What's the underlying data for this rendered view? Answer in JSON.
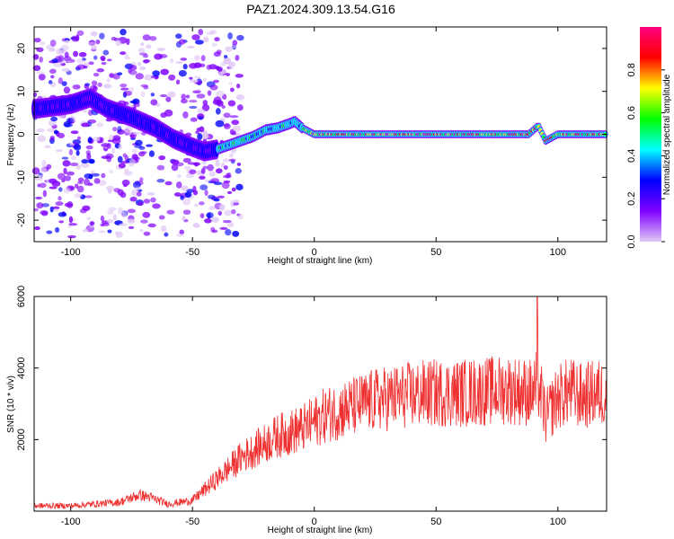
{
  "figure": {
    "title": "PAZ1.2024.309.13.54.G16"
  },
  "chart_data": [
    {
      "type": "heatmap",
      "xlabel": "Height of straight line (km)",
      "ylabel": "Frequency (Hz)",
      "xlim": [
        -115,
        120
      ],
      "ylim": [
        -25,
        25
      ],
      "xticks": [
        -100,
        -50,
        0,
        50,
        100
      ],
      "yticks": [
        -20,
        -10,
        0,
        10,
        20
      ],
      "colorbar": {
        "label": "Normalized spectral amplitude",
        "range": [
          0,
          1
        ],
        "ticks": [
          0.0,
          0.2,
          0.4,
          0.6,
          0.8
        ],
        "colors": [
          "#e0c8f5",
          "#8000ff",
          "#0000ff",
          "#00ffff",
          "#00ff00",
          "#ffff00",
          "#ff0000",
          "#ff0080"
        ]
      },
      "ridge": {
        "height_km": [
          -113,
          -100,
          -92,
          -85,
          -75,
          -65,
          -58,
          -50,
          -45,
          -40,
          -35,
          -30,
          -25,
          -20,
          -15,
          -10,
          -8,
          -5,
          0,
          10,
          20,
          30,
          40,
          50,
          60,
          70,
          80,
          88,
          92,
          95,
          100,
          110,
          120
        ],
        "frequency_hz": [
          6,
          7,
          8.5,
          6,
          4,
          1.5,
          -1,
          -3,
          -4,
          -3.5,
          -2.5,
          -1.5,
          -0.5,
          1,
          1.5,
          2.5,
          3,
          1.5,
          0,
          0,
          0,
          0,
          0,
          0,
          0,
          0,
          0,
          0,
          2,
          -1.5,
          0,
          0,
          0
        ]
      }
    },
    {
      "type": "line",
      "xlabel": "Height of straight line (km)",
      "ylabel": "SNR (10 * v/v)",
      "xlim": [
        -115,
        120
      ],
      "ylim": [
        0,
        6000
      ],
      "xticks": [
        -100,
        -50,
        0,
        50,
        100
      ],
      "yticks": [
        2000,
        4000,
        6000
      ],
      "color": "#ee3030",
      "series": [
        {
          "x": [
            -115,
            -100,
            -90,
            -80,
            -72,
            -68,
            -60,
            -50,
            -45,
            -40,
            -35,
            -30,
            -25,
            -20,
            -15,
            -10,
            -5,
            0,
            5,
            10,
            15,
            20,
            25,
            30,
            40,
            50,
            60,
            70,
            80,
            85,
            90,
            92,
            95,
            100,
            105,
            110,
            115,
            120
          ],
          "y": [
            150,
            150,
            200,
            250,
            450,
            400,
            200,
            300,
            600,
            900,
            1200,
            1500,
            1700,
            1900,
            2100,
            2200,
            2300,
            2500,
            2700,
            2800,
            2900,
            3000,
            3100,
            3150,
            3250,
            3300,
            3300,
            3350,
            3400,
            3350,
            3300,
            3600,
            2600,
            3200,
            3350,
            3200,
            3300,
            3300
          ]
        }
      ]
    }
  ]
}
